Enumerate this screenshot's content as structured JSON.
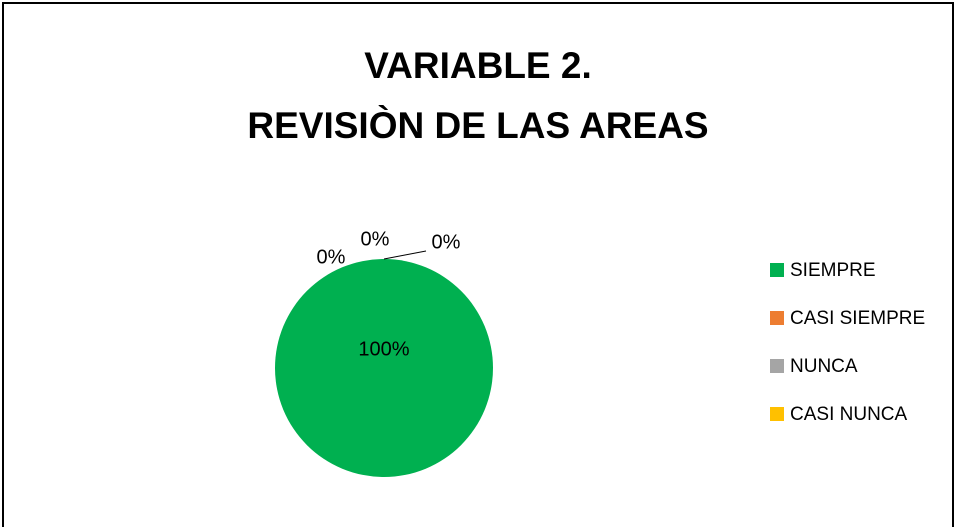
{
  "chart_data": {
    "type": "pie",
    "title": [
      "VARIABLE 2.",
      "REVISIÒN DE LAS AREAS"
    ],
    "categories": [
      "SIEMPRE",
      "CASI SIEMPRE",
      "NUNCA",
      "CASI NUNCA"
    ],
    "values": [
      100,
      0,
      0,
      0
    ],
    "value_labels": [
      "100%",
      "0%",
      "0%",
      "0%"
    ],
    "colors": [
      "#00b050",
      "#ed7d31",
      "#a5a5a5",
      "#ffc000"
    ],
    "legend": "right"
  }
}
